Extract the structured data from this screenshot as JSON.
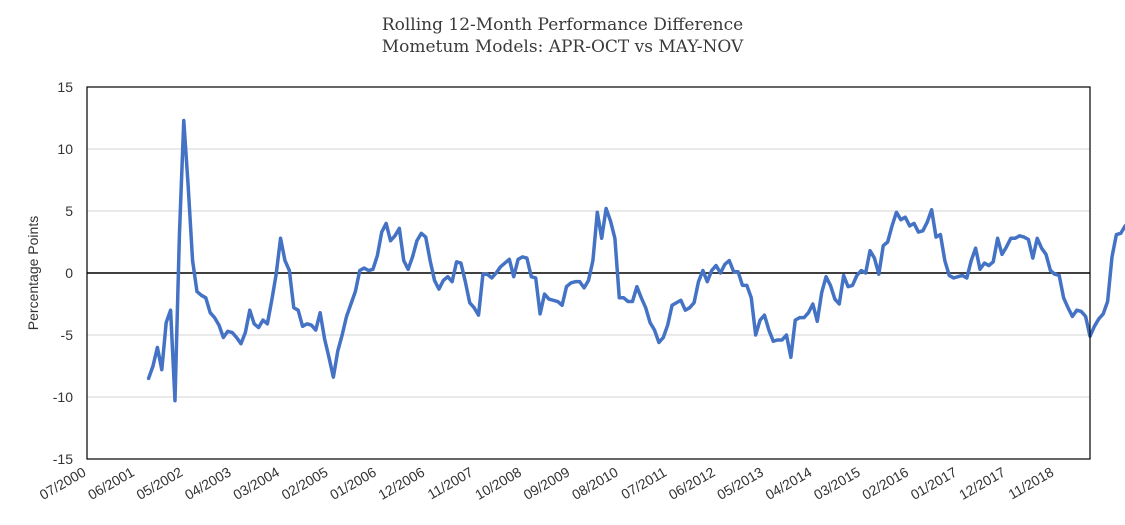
{
  "chart_data": {
    "type": "line",
    "title": "Rolling 12-Month Performance Difference",
    "subtitle": "Mometum Models: APR-OCT vs MAY-NOV",
    "xlabel": "",
    "ylabel": "Percentage Points",
    "ylim": [
      -15,
      15
    ],
    "yticks": [
      15,
      10,
      5,
      0,
      -5,
      -10,
      -15
    ],
    "x_tick_labels": [
      "07/2000",
      "06/2001",
      "05/2002",
      "04/2003",
      "03/2004",
      "02/2005",
      "01/2006",
      "12/2006",
      "11/2007",
      "10/2008",
      "09/2009",
      "08/2010",
      "07/2011",
      "06/2012",
      "05/2013",
      "04/2014",
      "03/2015",
      "02/2016",
      "01/2017",
      "12/2017",
      "11/2018"
    ],
    "x_range": [
      "07/2000",
      "07/2019"
    ],
    "grid": "horizontal",
    "zero_line": true,
    "line_color": "#4472c4",
    "series": [
      {
        "start": "09/2001",
        "frequency": "monthly",
        "values": [
          -8.5,
          -7.5,
          -6.0,
          -7.8,
          -4.0,
          -3.0,
          -10.3,
          3.0,
          12.3,
          7.0,
          1.0,
          -1.5,
          -1.8,
          -2.0,
          -3.2,
          -3.6,
          -4.2,
          -5.2,
          -4.7,
          -4.8,
          -5.2,
          -5.7,
          -4.8,
          -3.0,
          -4.1,
          -4.4,
          -3.8,
          -4.1,
          -2.2,
          -0.1,
          2.8,
          1.0,
          0.2,
          -2.8,
          -3.0,
          -4.3,
          -4.1,
          -4.2,
          -4.6,
          -3.2,
          -5.3,
          -6.8,
          -8.4,
          -6.3,
          -5.0,
          -3.5,
          -2.5,
          -1.5,
          0.2,
          0.4,
          0.2,
          0.3,
          1.4,
          3.3,
          4.0,
          2.6,
          3.0,
          3.6,
          1.0,
          0.3,
          1.3,
          2.6,
          3.2,
          2.9,
          1.0,
          -0.6,
          -1.3,
          -0.6,
          -0.3,
          -0.7,
          0.9,
          0.8,
          -0.7,
          -2.4,
          -2.8,
          -3.4,
          -0.1,
          -0.1,
          -0.4,
          0.0,
          0.5,
          0.8,
          1.1,
          -0.3,
          1.1,
          1.3,
          1.2,
          -0.3,
          -0.4,
          -3.3,
          -1.7,
          -2.1,
          -2.2,
          -2.3,
          -2.6,
          -1.1,
          -0.8,
          -0.7,
          -0.7,
          -1.2,
          -0.6,
          1.0,
          4.9,
          2.8,
          5.2,
          4.2,
          2.8,
          -2.0,
          -2.0,
          -2.3,
          -2.3,
          -1.1,
          -2.0,
          -2.8,
          -4.0,
          -4.6,
          -5.6,
          -5.2,
          -4.2,
          -2.6,
          -2.4,
          -2.2,
          -3.0,
          -2.8,
          -2.4,
          -0.7,
          0.2,
          -0.7,
          0.2,
          0.6,
          0.0,
          0.7,
          1.0,
          0.1,
          0.1,
          -1.0,
          -1.0,
          -2.0,
          -5.0,
          -3.8,
          -3.4,
          -4.6,
          -5.5,
          -5.4,
          -5.4,
          -5.0,
          -6.8,
          -3.8,
          -3.6,
          -3.6,
          -3.2,
          -2.5,
          -3.9,
          -1.6,
          -0.3,
          -1.0,
          -2.1,
          -2.5,
          -0.2,
          -1.1,
          -1.0,
          -0.2,
          0.2,
          0.0,
          1.8,
          1.2,
          -0.1,
          2.2,
          2.5,
          3.8,
          4.9,
          4.3,
          4.5,
          3.8,
          4.0,
          3.3,
          3.4,
          4.1,
          5.1,
          2.9,
          3.1,
          1.0,
          -0.2,
          -0.4,
          -0.3,
          -0.2,
          -0.4,
          1.0,
          2.0,
          0.3,
          0.8,
          0.6,
          0.9,
          2.8,
          1.5,
          2.1,
          2.8,
          2.8,
          3.0,
          2.9,
          2.7,
          1.2,
          2.8,
          2.0,
          1.5,
          0.2,
          -0.1,
          -0.2,
          -2.0,
          -2.8,
          -3.5,
          -3.0,
          -3.1,
          -3.5,
          -5.1,
          -4.3,
          -3.7,
          -3.3,
          -2.3,
          1.3,
          3.1,
          3.2,
          3.8,
          3.3
        ]
      }
    ]
  }
}
